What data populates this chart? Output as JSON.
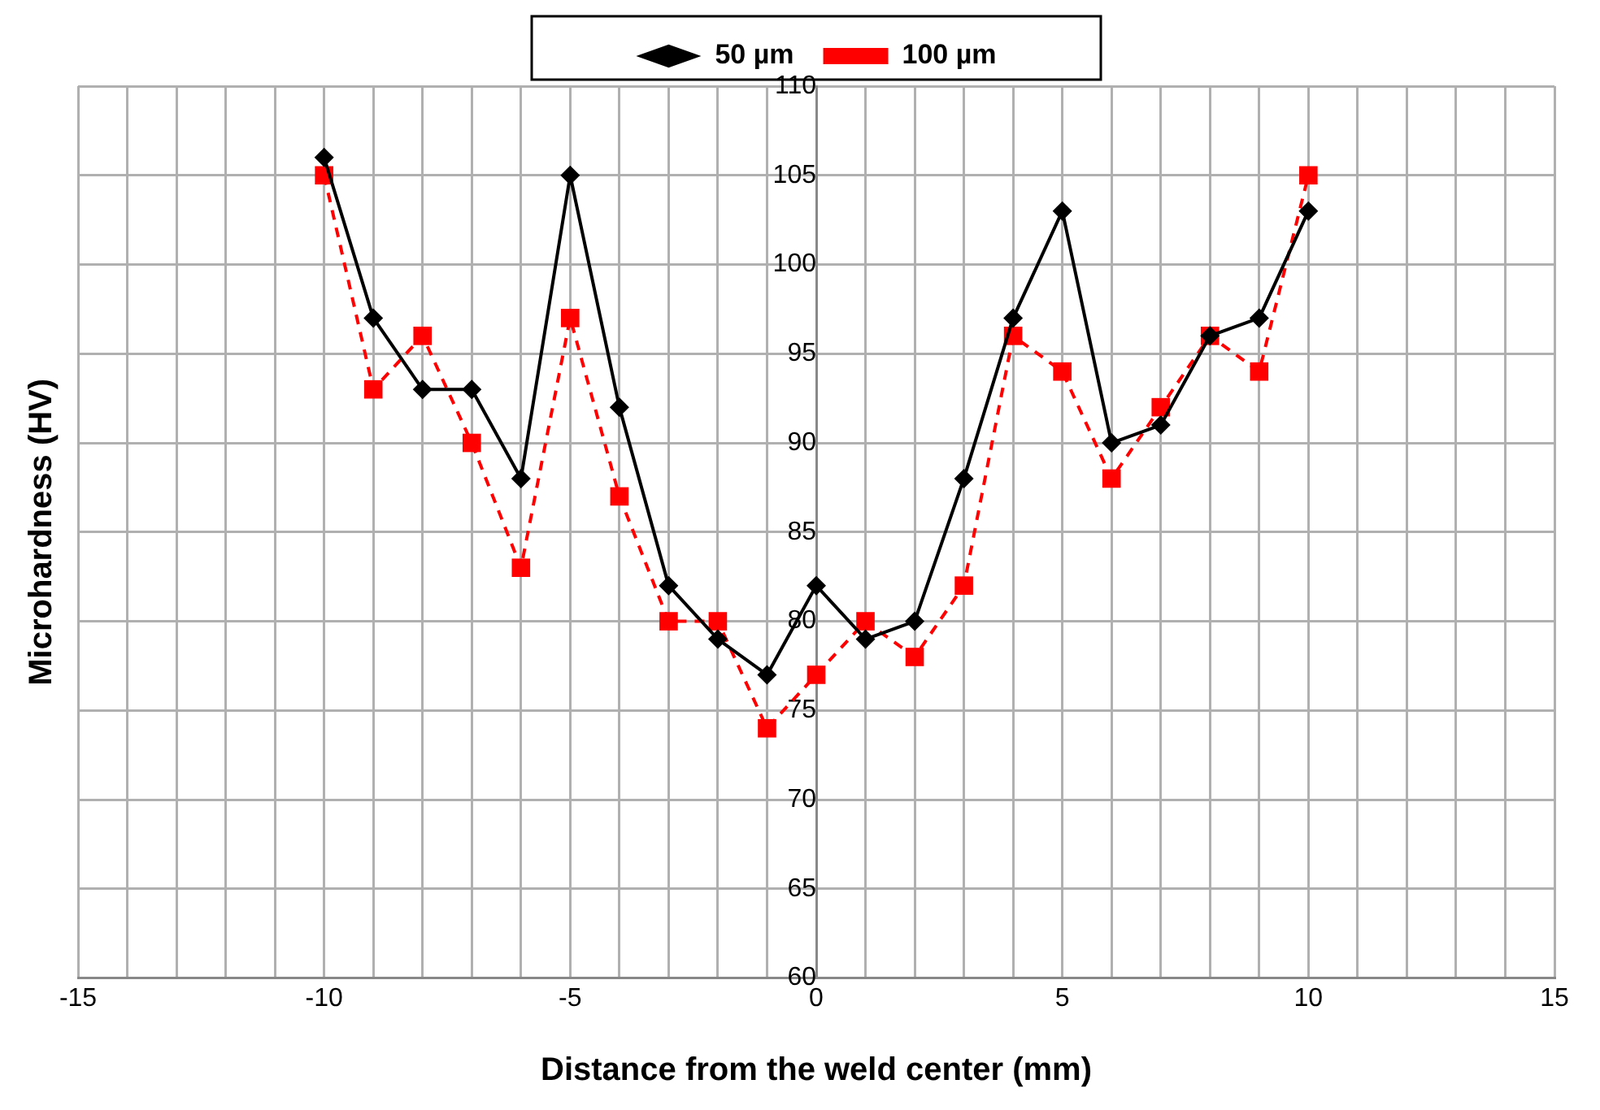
{
  "chart_data": {
    "type": "line",
    "xlabel": "Distance from the weld center (mm)",
    "ylabel": "Microhardness (HV)",
    "x": [
      -10,
      -9,
      -8,
      -7,
      -6,
      -5,
      -4,
      -3,
      -2,
      -1,
      0,
      1,
      2,
      3,
      4,
      5,
      6,
      7,
      8,
      9,
      10
    ],
    "series": [
      {
        "name": "50 µm",
        "color": "#000000",
        "marker": "diamond",
        "line_style": "solid",
        "values": [
          106,
          97,
          93,
          93,
          88,
          105,
          92,
          82,
          79,
          77,
          82,
          79,
          80,
          88,
          97,
          103,
          90,
          91,
          96,
          97,
          103
        ]
      },
      {
        "name": "100 µm",
        "color": "#ff0000",
        "marker": "square",
        "line_style": "dashed",
        "values": [
          105,
          93,
          96,
          90,
          83,
          97,
          87,
          80,
          80,
          74,
          77,
          80,
          78,
          82,
          96,
          94,
          88,
          92,
          96,
          94,
          105
        ]
      }
    ],
    "xlim": [
      -15,
      15
    ],
    "xticks": [
      -15,
      {
        "value": -14,
        "label": null
      },
      {
        "value": -13,
        "label": null
      },
      {
        "value": -12,
        "label": null
      },
      {
        "value": -11,
        "label": null
      },
      -10,
      {
        "value": -9,
        "label": null
      },
      {
        "value": -8,
        "label": null
      },
      {
        "value": -7,
        "label": null
      },
      {
        "value": -6,
        "label": null
      },
      -5,
      {
        "value": -4,
        "label": null
      },
      {
        "value": -3,
        "label": null
      },
      {
        "value": -2,
        "label": null
      },
      {
        "value": -1,
        "label": null
      },
      0,
      {
        "value": 1,
        "label": null
      },
      {
        "value": 2,
        "label": null
      },
      {
        "value": 3,
        "label": null
      },
      {
        "value": 4,
        "label": null
      },
      5,
      {
        "value": 6,
        "label": null
      },
      {
        "value": 7,
        "label": null
      },
      {
        "value": 8,
        "label": null
      },
      {
        "value": 9,
        "label": null
      },
      10,
      {
        "value": 11,
        "label": null
      },
      {
        "value": 12,
        "label": null
      },
      {
        "value": 13,
        "label": null
      },
      {
        "value": 14,
        "label": null
      },
      15
    ],
    "ylim": [
      60,
      110
    ],
    "yticks": [
      60,
      65,
      70,
      75,
      80,
      85,
      90,
      95,
      100,
      105,
      110
    ],
    "grid": true,
    "legend": "top"
  }
}
